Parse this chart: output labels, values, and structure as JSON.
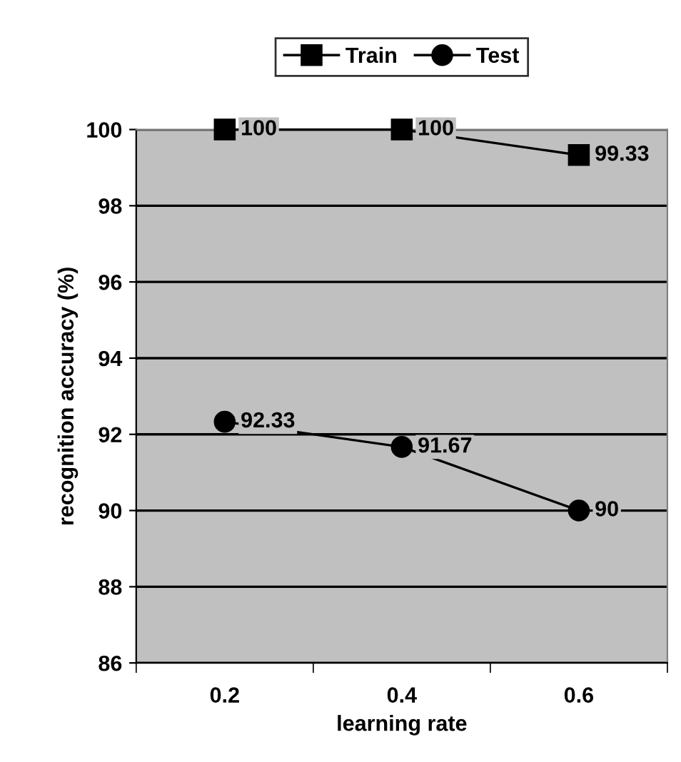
{
  "chart_data": {
    "type": "line",
    "xlabel": "learning rate",
    "ylabel": "recognition accuracy (%)",
    "categories": [
      "0.2",
      "0.4",
      "0.6"
    ],
    "series": [
      {
        "name": "Train",
        "color": "#000000",
        "marker": "square",
        "values": [
          100,
          100,
          99.33
        ]
      },
      {
        "name": "Test",
        "color": "#000000",
        "marker": "circle",
        "values": [
          92.33,
          91.67,
          90
        ]
      }
    ],
    "ylim": [
      86,
      100
    ],
    "yticks": [
      86,
      88,
      90,
      92,
      94,
      96,
      98,
      100
    ],
    "grid": "y",
    "legend": "top",
    "data_labels": true,
    "line_style": "solid"
  }
}
